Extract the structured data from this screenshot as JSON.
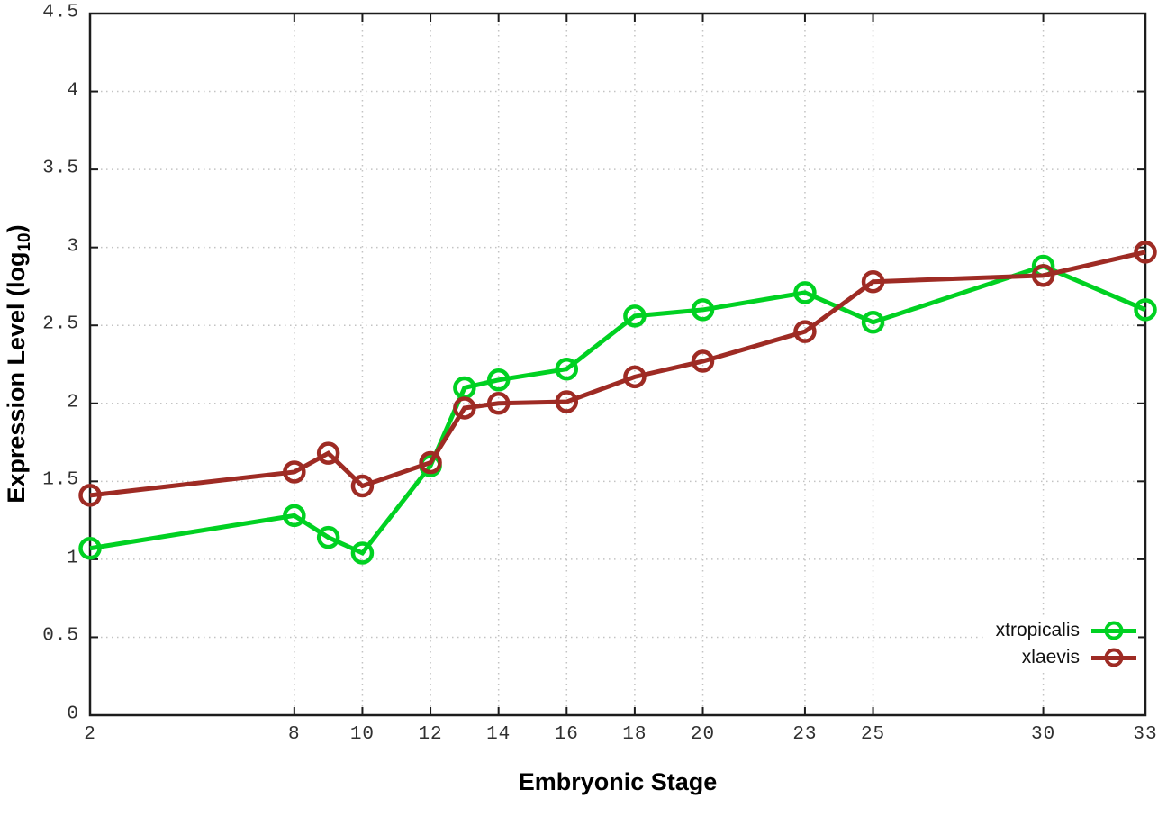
{
  "figure": {
    "background": "#ffffff",
    "axis_color": "#1c1c1c",
    "grid_color": "#c3c3c3",
    "tick_label_color": "#303030"
  },
  "chart_data": {
    "type": "line",
    "title": "",
    "xlabel": "Embryonic Stage",
    "ylabel": "Expression Level (log10)",
    "ylabel_parts": {
      "main": "Expression Level (log",
      "sub": "10",
      "end": ")"
    },
    "x": [
      2,
      8,
      9,
      10,
      12,
      13,
      14,
      16,
      18,
      20,
      23,
      25,
      30,
      33
    ],
    "x_tick_labels": [
      2,
      8,
      10,
      12,
      14,
      16,
      18,
      20,
      23,
      25,
      30,
      33
    ],
    "y_ticks": [
      0,
      0.5,
      1,
      1.5,
      2,
      2.5,
      3,
      3.5,
      4,
      4.5
    ],
    "xlim": [
      2,
      33
    ],
    "ylim": [
      0,
      4.5
    ],
    "grid": true,
    "legend_position": "bottom-right-inside",
    "series": [
      {
        "name": "xtropicalis",
        "color": "#00d122",
        "values": [
          1.07,
          1.28,
          1.14,
          1.04,
          1.6,
          2.1,
          2.15,
          2.22,
          2.56,
          2.6,
          2.71,
          2.52,
          2.88,
          2.6
        ]
      },
      {
        "name": "xlaevis",
        "color": "#9e2b24",
        "values": [
          1.41,
          1.56,
          1.68,
          1.47,
          1.62,
          1.97,
          2.0,
          2.01,
          2.17,
          2.27,
          2.46,
          2.78,
          2.82,
          2.97
        ]
      }
    ]
  }
}
